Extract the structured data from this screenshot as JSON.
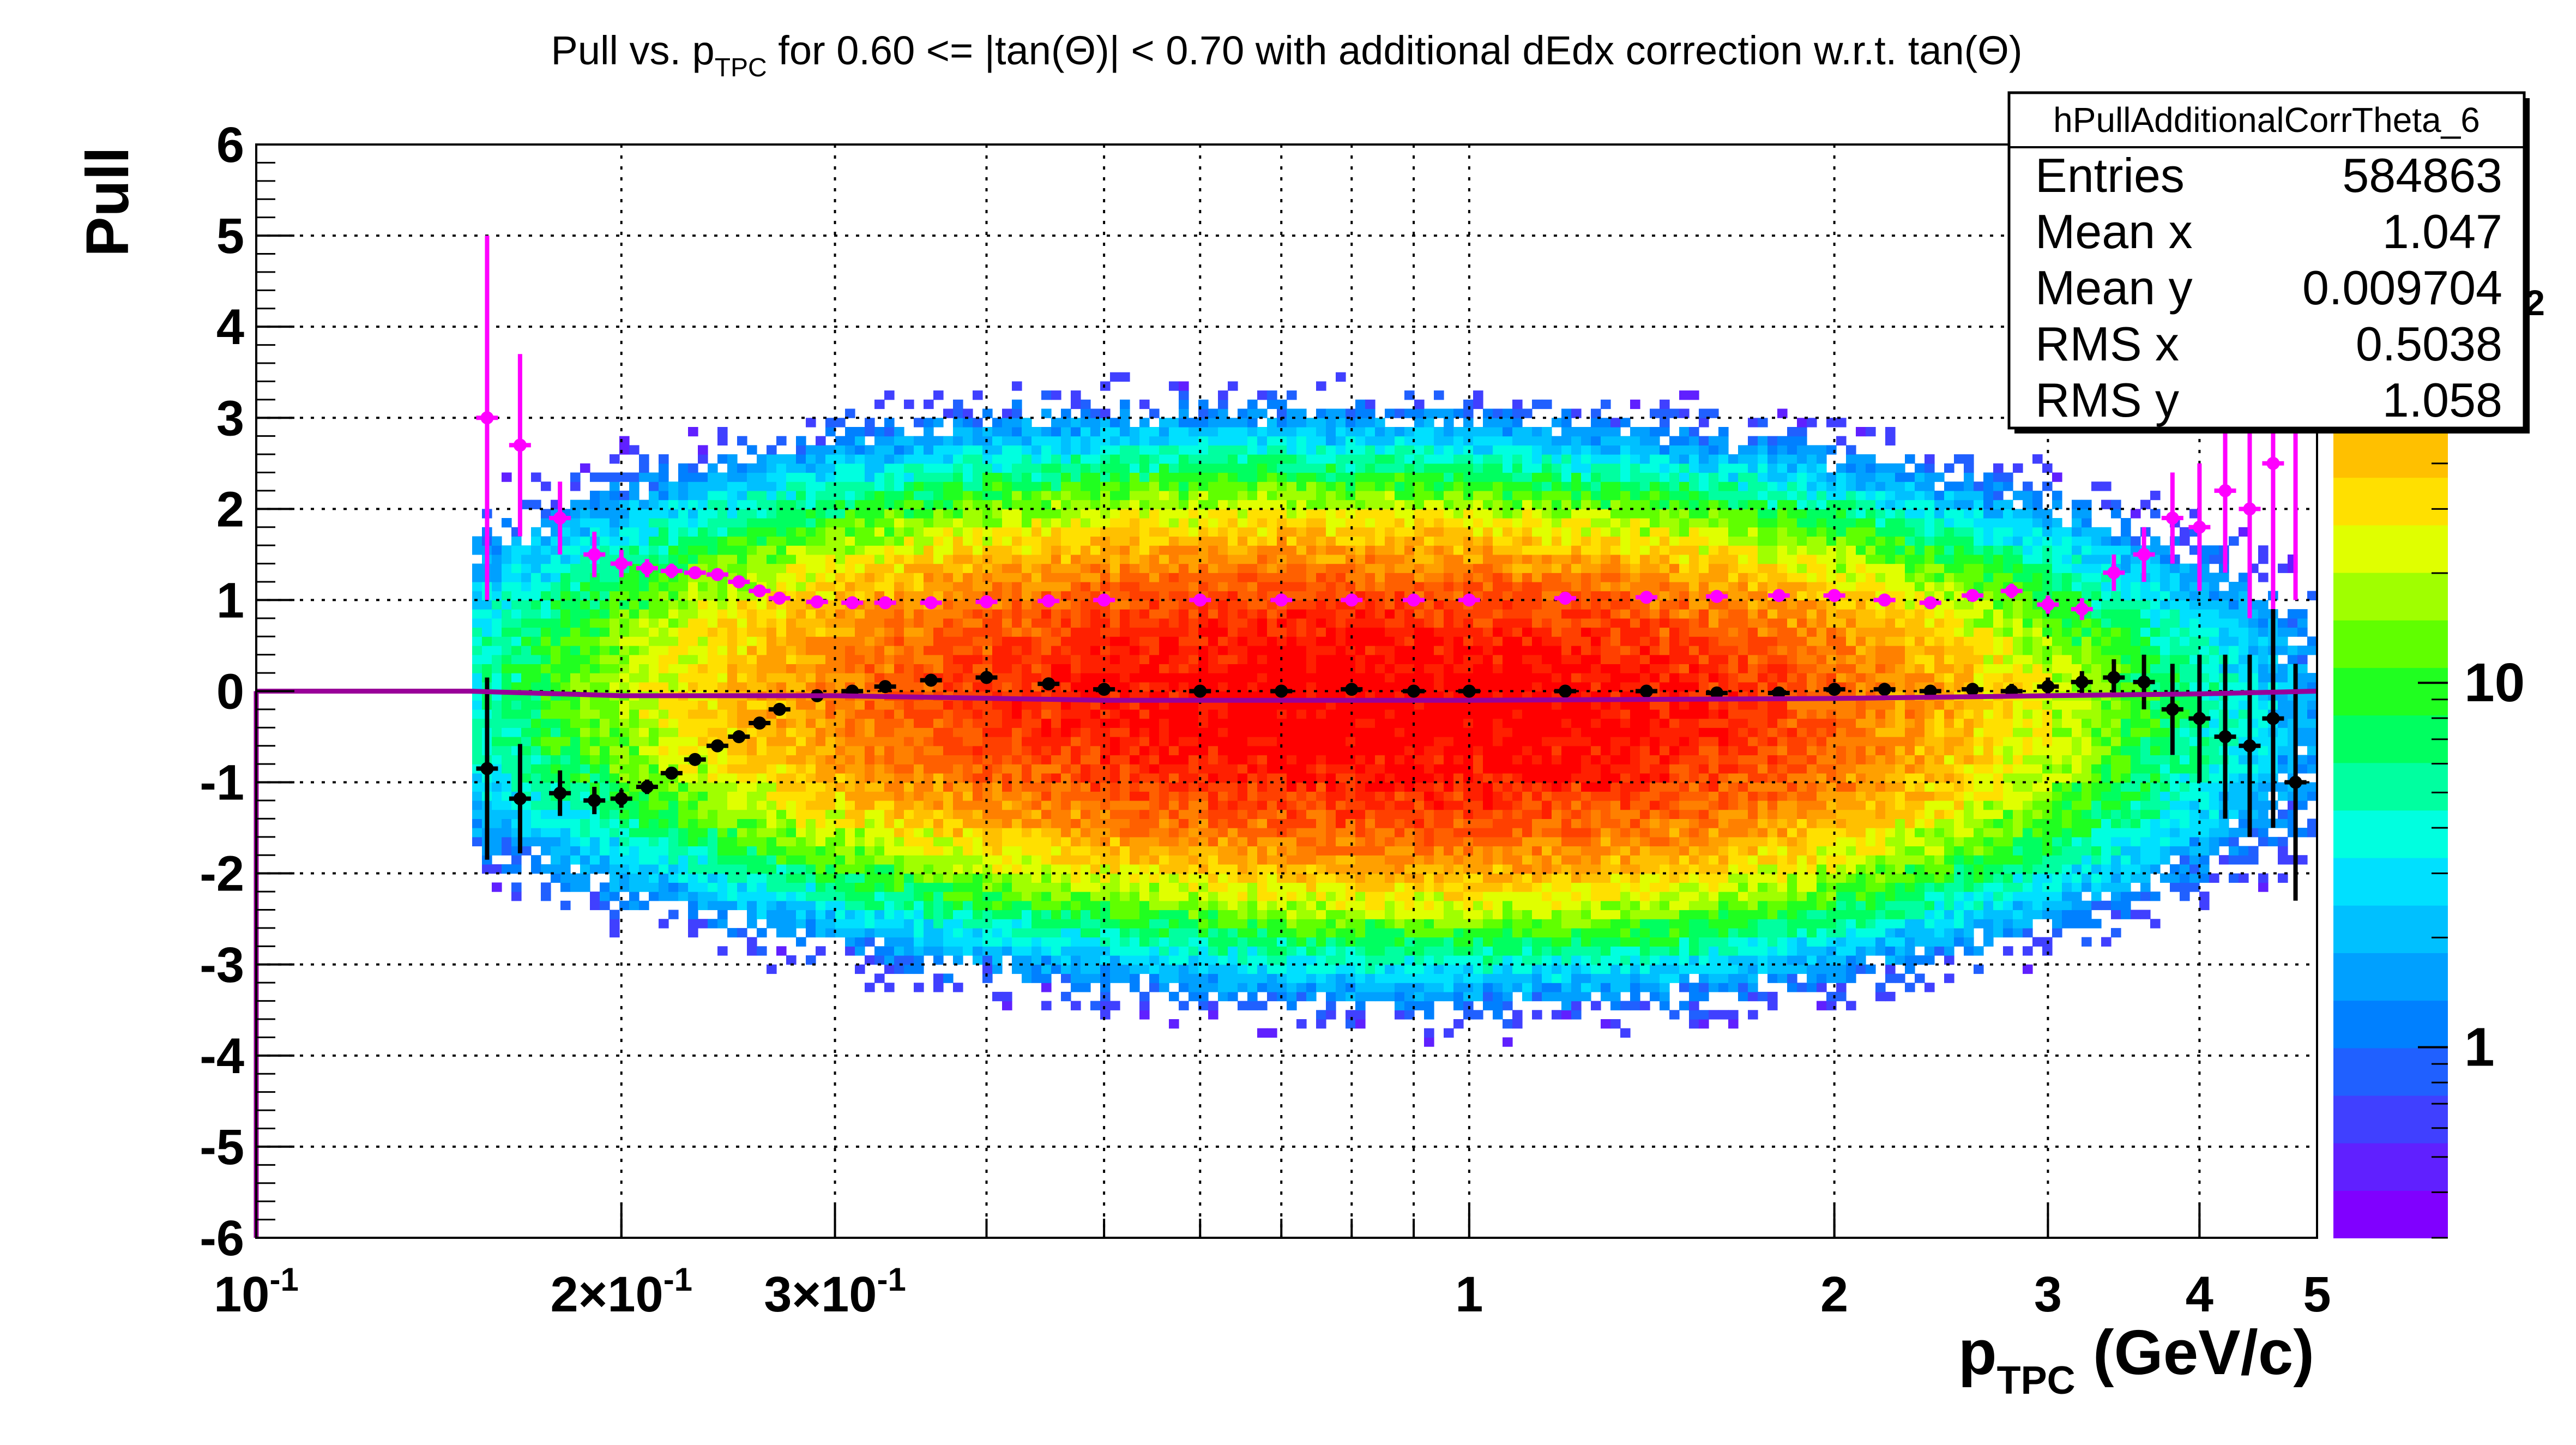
{
  "chart_data": {
    "type": "heatmap",
    "title_main": "Pull vs. p",
    "title_sub": "TPC",
    "title_rest": " for 0.60 <= |tan(Θ)| < 0.70 with additional dEdx correction w.r.t. tan(Θ)",
    "xlabel_main": "p",
    "xlabel_sub": "TPC",
    "xlabel_rest": " (GeV/c)",
    "ylabel": "Pull",
    "x_scale": "log",
    "xlim": [
      0.1,
      5
    ],
    "ylim": [
      -6,
      6
    ],
    "grid": true,
    "x_ticks": [
      {
        "value": 0.1,
        "label": "10",
        "sup": "-1"
      },
      {
        "value": 0.2,
        "label": "2×10",
        "sup": "-1"
      },
      {
        "value": 0.3,
        "label": "3×10",
        "sup": "-1"
      },
      {
        "value": 1,
        "label": "1",
        "sup": ""
      },
      {
        "value": 2,
        "label": "2",
        "sup": ""
      },
      {
        "value": 3,
        "label": "3",
        "sup": ""
      },
      {
        "value": 4,
        "label": "4",
        "sup": ""
      },
      {
        "value": 5,
        "label": "5",
        "sup": ""
      }
    ],
    "x_minor_grid": [
      0.4,
      0.5,
      0.6,
      0.7,
      0.8,
      0.9
    ],
    "y_ticks": [
      -6,
      -5,
      -4,
      -3,
      -2,
      -1,
      0,
      1,
      2,
      3,
      4,
      5,
      6
    ],
    "z_scale": "log",
    "z_range": [
      0.3,
      300
    ],
    "z_ticks": [
      {
        "value": 1,
        "label": "1",
        "sup": ""
      },
      {
        "value": 10,
        "label": "10",
        "sup": ""
      },
      {
        "value": 100,
        "label": "10",
        "sup": "2"
      }
    ],
    "palette": [
      "#8000ff",
      "#6020ff",
      "#4040ff",
      "#2060ff",
      "#0080ff",
      "#00a0ff",
      "#00c0ff",
      "#00e0ff",
      "#00ffe0",
      "#00ffa0",
      "#00ff60",
      "#20ff20",
      "#60ff00",
      "#a0ff00",
      "#e0ff00",
      "#ffe000",
      "#ffc000",
      "#ffa000",
      "#ff8000",
      "#ff6000",
      "#ff4000",
      "#ff2000",
      "#ff0000"
    ],
    "density_model": {
      "x_range": [
        0.15,
        5.0
      ],
      "y_core_sigma": 1.0,
      "peaks": [
        {
          "x": 0.5,
          "y": 0.0,
          "amplitude": 180
        },
        {
          "x": 1.15,
          "y": -0.3,
          "amplitude": 260
        }
      ]
    },
    "series": [
      {
        "name": "",
        "color": "#ff00ff",
        "points": [
          [
            0.155,
            3.0,
            2.0
          ],
          [
            0.165,
            2.7,
            1.0
          ],
          [
            0.178,
            1.9,
            0.4
          ],
          [
            0.19,
            1.5,
            0.25
          ],
          [
            0.2,
            1.4,
            0.15
          ],
          [
            0.21,
            1.35,
            0.1
          ],
          [
            0.22,
            1.32,
            0.08
          ],
          [
            0.23,
            1.3,
            0.06
          ],
          [
            0.24,
            1.28,
            0.05
          ],
          [
            0.25,
            1.2,
            0.05
          ],
          [
            0.26,
            1.1,
            0.04
          ],
          [
            0.27,
            1.02,
            0.03
          ],
          [
            0.29,
            0.98,
            0.02
          ],
          [
            0.31,
            0.97,
            0.02
          ],
          [
            0.33,
            0.97,
            0.02
          ],
          [
            0.36,
            0.97,
            0.02
          ],
          [
            0.4,
            0.98,
            0.02
          ],
          [
            0.45,
            0.99,
            0.02
          ],
          [
            0.5,
            1.0,
            0.02
          ],
          [
            0.6,
            1.0,
            0.02
          ],
          [
            0.7,
            1.0,
            0.02
          ],
          [
            0.8,
            1.0,
            0.02
          ],
          [
            0.9,
            1.0,
            0.02
          ],
          [
            1.0,
            1.0,
            0.02
          ],
          [
            1.2,
            1.02,
            0.02
          ],
          [
            1.4,
            1.03,
            0.02
          ],
          [
            1.6,
            1.04,
            0.02
          ],
          [
            1.8,
            1.05,
            0.02
          ],
          [
            2.0,
            1.05,
            0.03
          ],
          [
            2.2,
            1.0,
            0.04
          ],
          [
            2.4,
            0.97,
            0.05
          ],
          [
            2.6,
            1.05,
            0.06
          ],
          [
            2.8,
            1.1,
            0.08
          ],
          [
            3.0,
            0.95,
            0.1
          ],
          [
            3.2,
            0.9,
            0.12
          ],
          [
            3.4,
            1.3,
            0.2
          ],
          [
            3.6,
            1.5,
            0.3
          ],
          [
            3.8,
            1.9,
            0.5
          ],
          [
            4.0,
            1.8,
            0.7
          ],
          [
            4.2,
            2.2,
            0.9
          ],
          [
            4.4,
            2.0,
            1.2
          ],
          [
            4.6,
            2.5,
            1.6
          ],
          [
            4.8,
            3.0,
            2.0
          ]
        ]
      },
      {
        "name": "",
        "color": "#000000",
        "points": [
          [
            0.155,
            -0.85,
            1.0
          ],
          [
            0.165,
            -1.18,
            0.6
          ],
          [
            0.178,
            -1.12,
            0.25
          ],
          [
            0.19,
            -1.2,
            0.15
          ],
          [
            0.2,
            -1.18,
            0.1
          ],
          [
            0.21,
            -1.05,
            0.08
          ],
          [
            0.22,
            -0.9,
            0.06
          ],
          [
            0.23,
            -0.75,
            0.05
          ],
          [
            0.24,
            -0.6,
            0.04
          ],
          [
            0.25,
            -0.5,
            0.04
          ],
          [
            0.26,
            -0.35,
            0.03
          ],
          [
            0.27,
            -0.2,
            0.03
          ],
          [
            0.29,
            -0.05,
            0.02
          ],
          [
            0.31,
            0.0,
            0.02
          ],
          [
            0.33,
            0.05,
            0.02
          ],
          [
            0.36,
            0.12,
            0.02
          ],
          [
            0.4,
            0.15,
            0.02
          ],
          [
            0.45,
            0.08,
            0.02
          ],
          [
            0.5,
            0.02,
            0.02
          ],
          [
            0.6,
            0.0,
            0.02
          ],
          [
            0.7,
            0.0,
            0.02
          ],
          [
            0.8,
            0.02,
            0.02
          ],
          [
            0.9,
            0.0,
            0.02
          ],
          [
            1.0,
            0.0,
            0.02
          ],
          [
            1.2,
            0.0,
            0.02
          ],
          [
            1.4,
            0.0,
            0.02
          ],
          [
            1.6,
            -0.02,
            0.02
          ],
          [
            1.8,
            -0.02,
            0.02
          ],
          [
            2.0,
            0.02,
            0.03
          ],
          [
            2.2,
            0.02,
            0.04
          ],
          [
            2.4,
            0.0,
            0.05
          ],
          [
            2.6,
            0.02,
            0.06
          ],
          [
            2.8,
            0.0,
            0.08
          ],
          [
            3.0,
            0.05,
            0.1
          ],
          [
            3.2,
            0.1,
            0.12
          ],
          [
            3.4,
            0.15,
            0.2
          ],
          [
            3.6,
            0.1,
            0.3
          ],
          [
            3.8,
            -0.2,
            0.5
          ],
          [
            4.0,
            -0.3,
            0.7
          ],
          [
            4.2,
            -0.5,
            0.9
          ],
          [
            4.4,
            -0.6,
            1.0
          ],
          [
            4.6,
            -0.3,
            1.2
          ],
          [
            4.8,
            -1.0,
            1.3
          ]
        ]
      },
      {
        "name": "",
        "color": "#990099",
        "type": "line",
        "points": [
          [
            0.1,
            0.0
          ],
          [
            0.15,
            0.0
          ],
          [
            0.2,
            -0.05
          ],
          [
            0.3,
            -0.05
          ],
          [
            0.5,
            -0.1
          ],
          [
            1.0,
            -0.1
          ],
          [
            2.0,
            -0.08
          ],
          [
            3.0,
            -0.05
          ],
          [
            4.0,
            -0.03
          ],
          [
            5.0,
            0.0
          ]
        ]
      }
    ],
    "stats_box": {
      "title": "hPullAdditionalCorrTheta_6",
      "rows": [
        {
          "label": "Entries",
          "value": "584863"
        },
        {
          "label": "Mean x",
          "value": "1.047"
        },
        {
          "label": "Mean y",
          "value": "0.009704"
        },
        {
          "label": "RMS x",
          "value": "0.5038"
        },
        {
          "label": "RMS y",
          "value": "1.058"
        }
      ]
    }
  }
}
